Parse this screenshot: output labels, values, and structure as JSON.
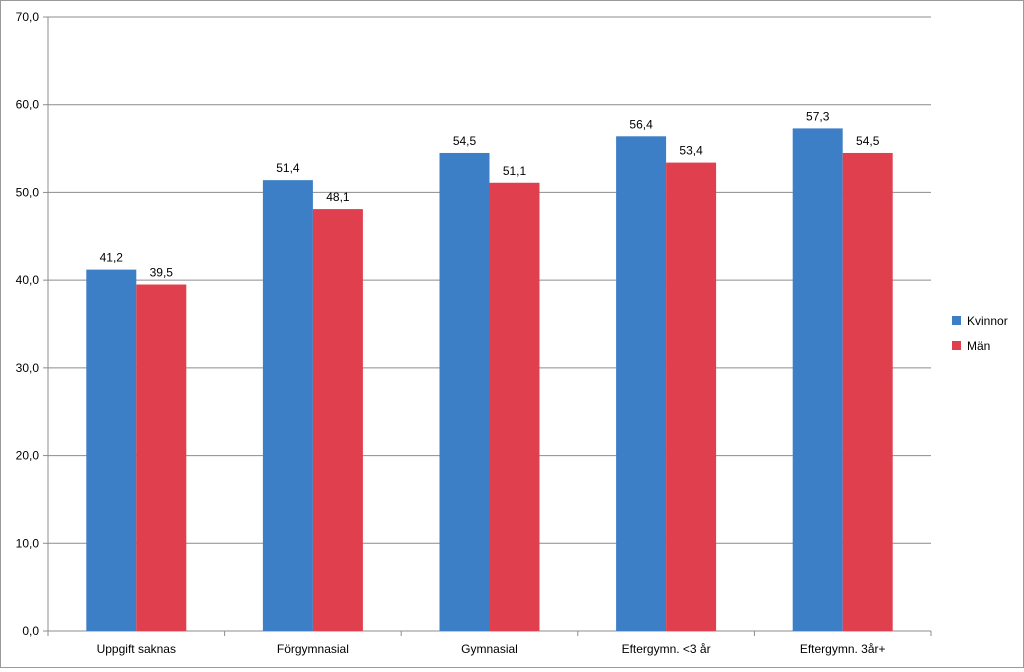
{
  "chart_data": {
    "type": "bar",
    "title": "",
    "xlabel": "",
    "ylabel": "",
    "categories": [
      "Uppgift saknas",
      "Förgymnasial",
      "Gymnasial",
      "Eftergymn. <3 år",
      "Eftergymn. 3år+"
    ],
    "series": [
      {
        "name": "Kvinnor",
        "values": [
          41.2,
          51.4,
          54.5,
          56.4,
          57.3
        ],
        "labels": [
          "41,2",
          "51,4",
          "54,5",
          "56,4",
          "57,3"
        ],
        "color": "#3d7fc6"
      },
      {
        "name": "Män",
        "values": [
          39.5,
          48.1,
          51.1,
          53.4,
          54.5
        ],
        "labels": [
          "39,5",
          "48,1",
          "51,1",
          "53,4",
          "54,5"
        ],
        "color": "#e0404d"
      }
    ],
    "ylim": [
      0,
      70
    ],
    "yticks": [
      0,
      10,
      20,
      30,
      40,
      50,
      60,
      70
    ],
    "ytick_labels": [
      "0,0",
      "10,0",
      "20,0",
      "30,0",
      "40,0",
      "50,0",
      "60,0",
      "70,0"
    ],
    "grid": true,
    "legend_position": "right"
  }
}
